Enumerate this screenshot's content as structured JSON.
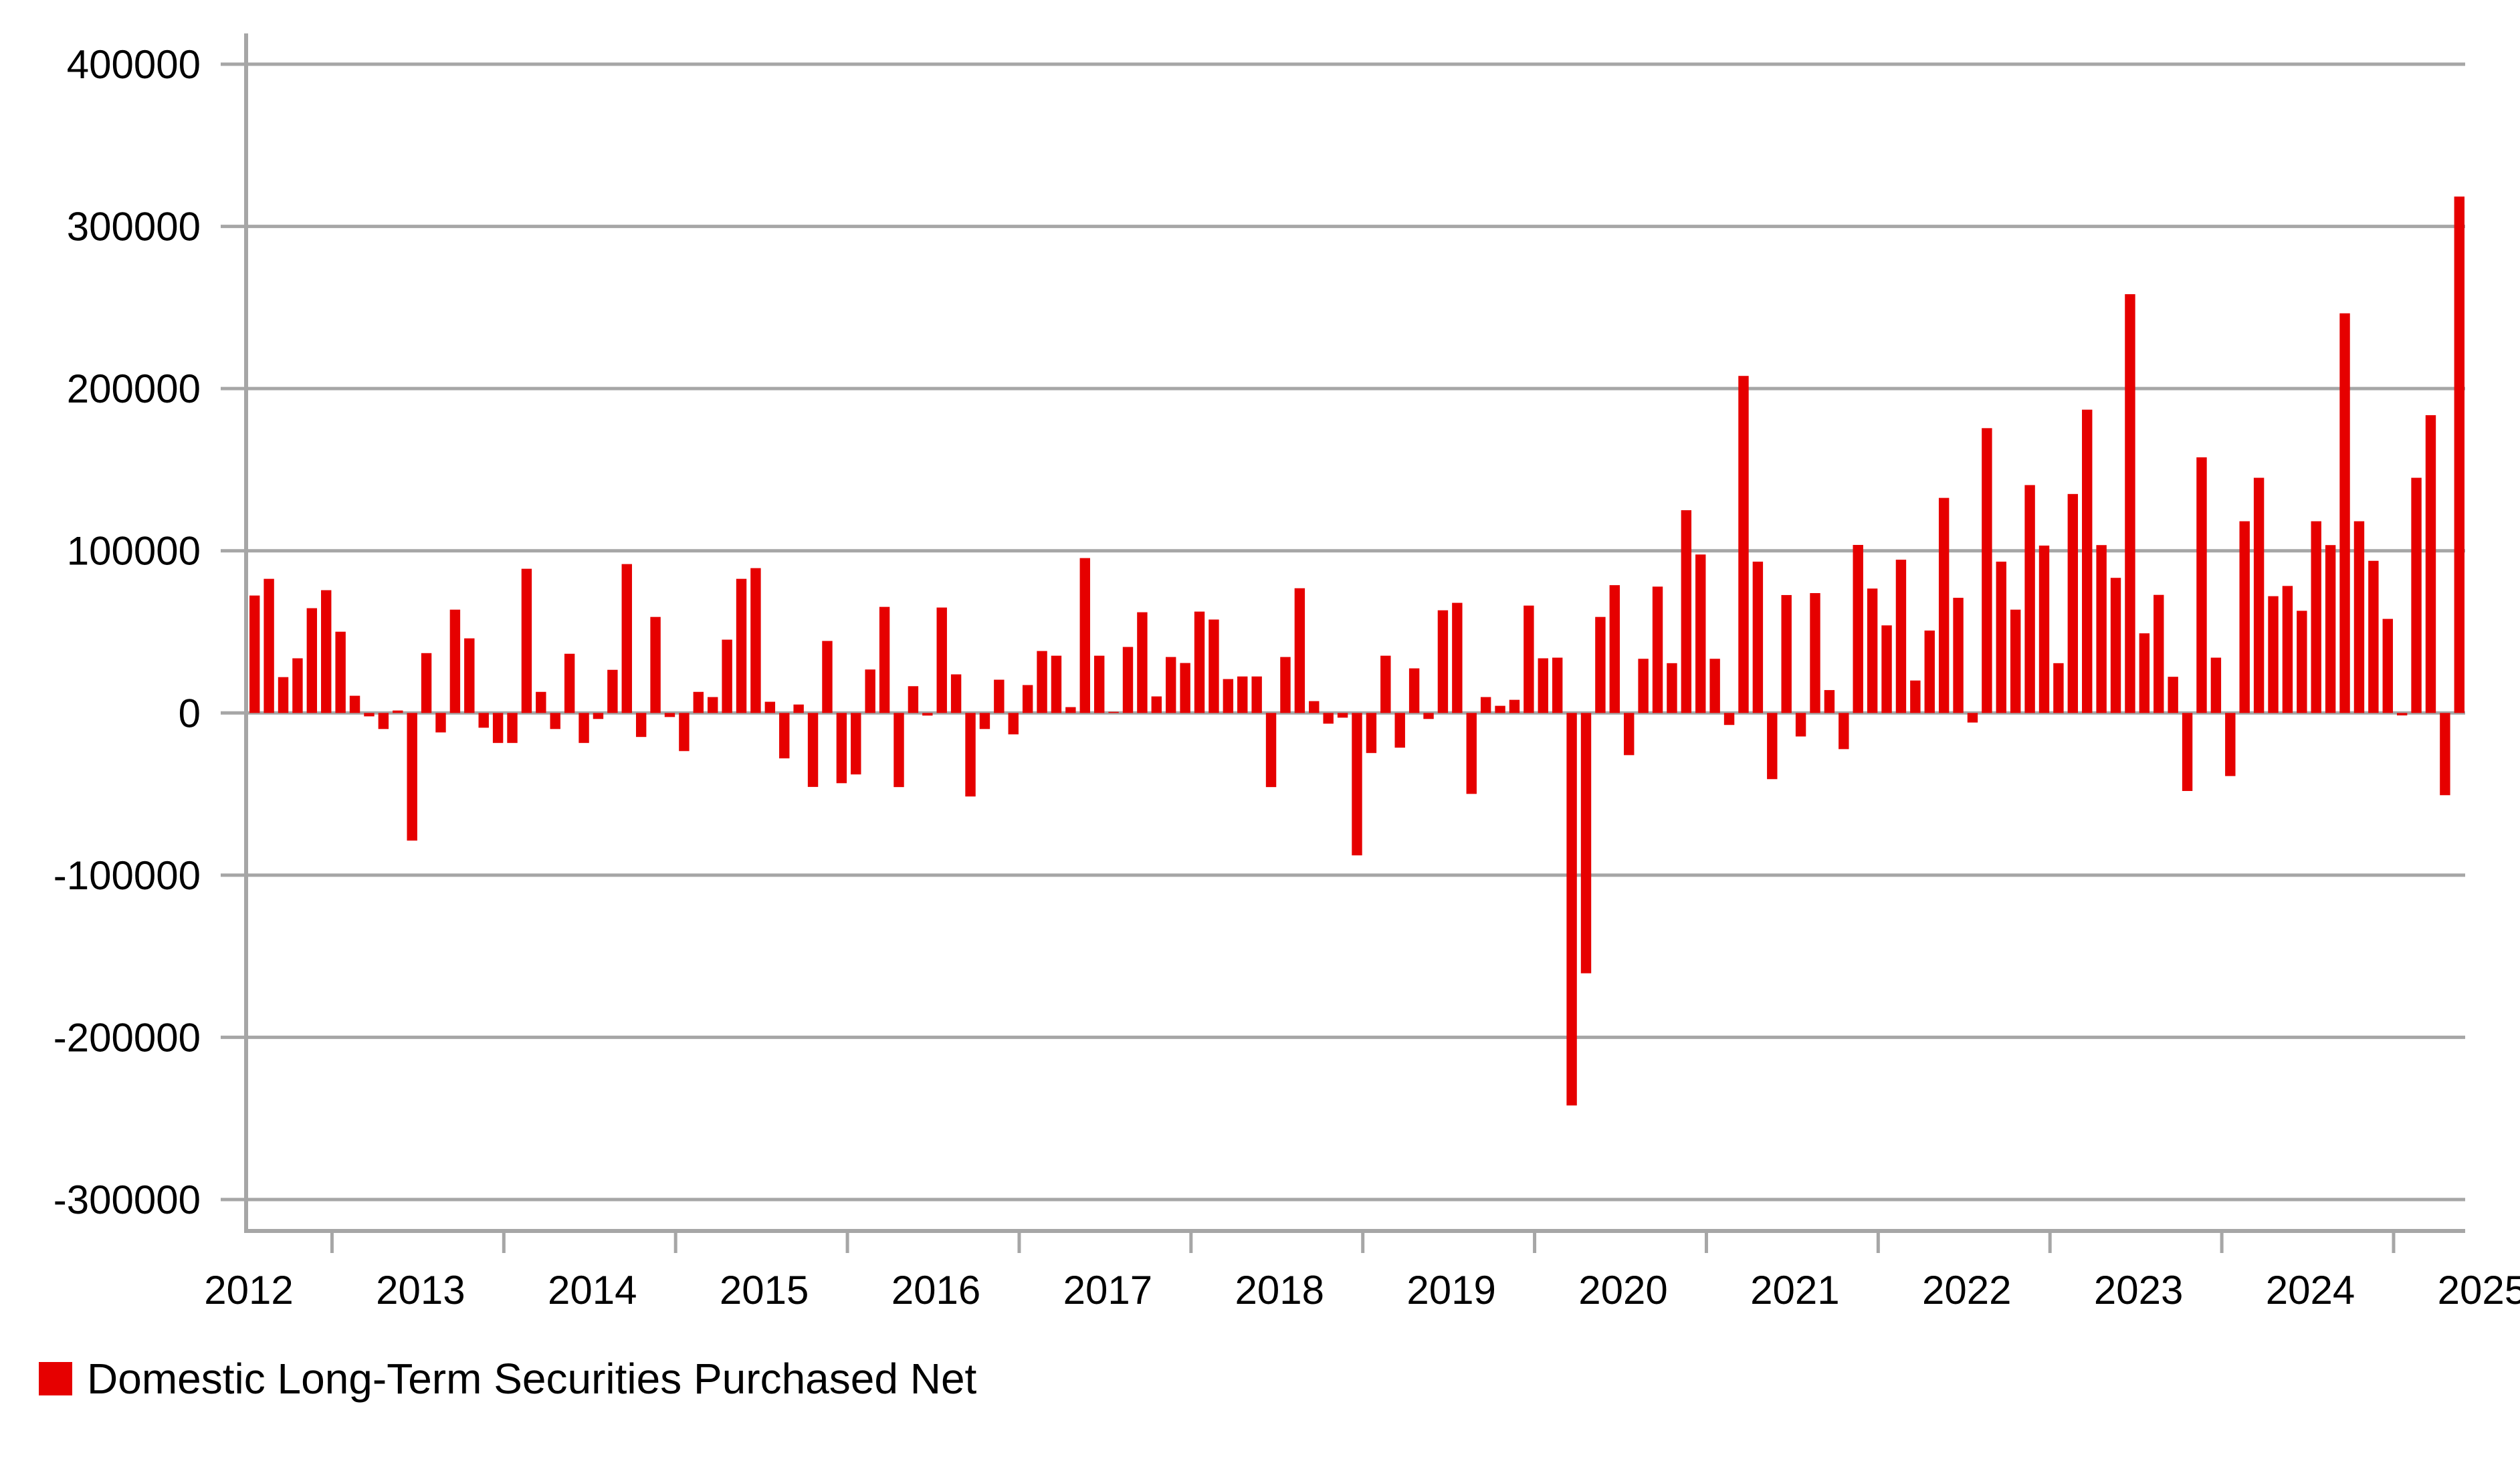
{
  "chart_data": {
    "type": "bar",
    "title": "",
    "xlabel": "",
    "ylabel": "",
    "ylim": [
      -300000,
      400000
    ],
    "yticks": [
      400000,
      300000,
      200000,
      100000,
      0,
      -100000,
      -200000,
      -300000
    ],
    "ytick_labels": [
      "400000",
      "300000",
      "200000",
      "100000",
      "0",
      "-100000",
      "-200000",
      "-300000"
    ],
    "xtick_labels": [
      "2012",
      "2013",
      "2014",
      "2015",
      "2016",
      "2017",
      "2018",
      "2019",
      "2020",
      "2021",
      "2022",
      "2023",
      "2024",
      "2025"
    ],
    "x_start": "2012-01",
    "frequency": "monthly",
    "grid": true,
    "legend_position": "bottom-left",
    "series": [
      {
        "name": "Domestic Long-Term Securities Purchased Net",
        "color": "#e60000",
        "values": [
          72400,
          82700,
          22100,
          33700,
          64600,
          75700,
          50100,
          10600,
          -2100,
          -9900,
          1500,
          -78700,
          36900,
          -12000,
          63700,
          46000,
          -9100,
          -18500,
          -18500,
          88900,
          13000,
          -9900,
          36500,
          -18500,
          -3700,
          26600,
          91800,
          -14800,
          59200,
          -2500,
          -23500,
          13000,
          9800,
          45200,
          82700,
          89300,
          6900,
          -28000,
          5200,
          -45600,
          44400,
          -43300,
          -37900,
          26800,
          65400,
          -45700,
          16500,
          -1600,
          65000,
          23800,
          -51500,
          -9900,
          20500,
          -13200,
          17200,
          38200,
          35300,
          3600,
          95500,
          35300,
          700,
          40700,
          62100,
          10200,
          34500,
          30800,
          62500,
          57600,
          20900,
          22500,
          22500,
          -45700,
          34500,
          76900,
          7300,
          -6600,
          -2900,
          -87800,
          -24700,
          35300,
          -21400,
          27500,
          -3700,
          63300,
          67900,
          -49900,
          9800,
          4400,
          8100,
          66200,
          33700,
          34100,
          -242000,
          -160500,
          59200,
          78800,
          -26000,
          33400,
          77900,
          30700,
          125000,
          97700,
          33400,
          -7400,
          207800,
          93300,
          -40800,
          72700,
          -14500,
          73900,
          14100,
          -22300,
          103600,
          76700,
          54000,
          94500,
          20000,
          50800,
          132600,
          71000,
          -5900,
          175600,
          93300,
          63700,
          140500,
          103200,
          30700,
          135000,
          187000,
          103500,
          83300,
          258200,
          49100,
          72800,
          22300,
          -48100,
          157600,
          34100,
          -38900,
          118200,
          145000,
          72000,
          78300,
          63000,
          118200,
          103500,
          246400,
          118200,
          93800,
          58000,
          -1500,
          145000,
          183600,
          -50700,
          318400
        ]
      }
    ]
  },
  "legend": {
    "label": "Domestic Long-Term Securities Purchased Net",
    "color": "#e60000"
  },
  "colors": {
    "grid": "#a6a6a6",
    "bar": "#e60000",
    "text": "#000000"
  }
}
